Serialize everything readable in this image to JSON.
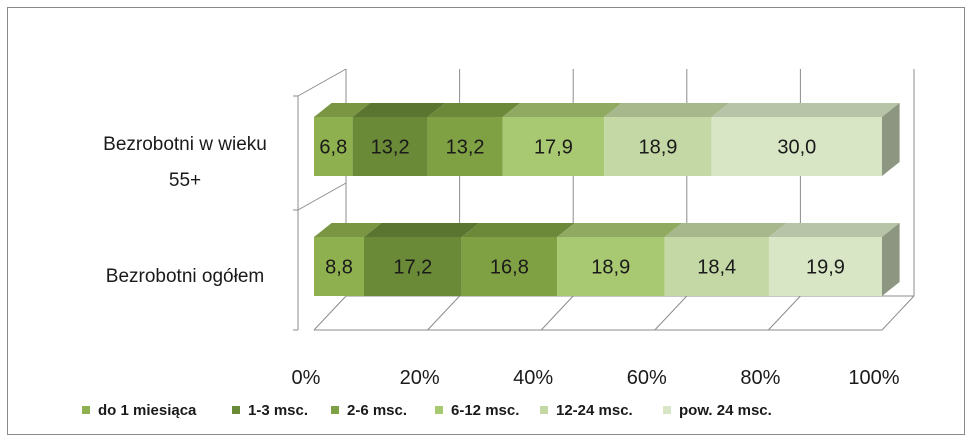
{
  "chart_data": {
    "type": "bar",
    "stacked": "percent",
    "orientation": "horizontal",
    "three_d": true,
    "categories": [
      "Bezrobotni w wieku 55+",
      "Bezrobotni ogółem"
    ],
    "category_label_lines": [
      [
        "Bezrobotni w wieku",
        "55+"
      ],
      [
        "Bezrobotni ogółem"
      ]
    ],
    "series": [
      {
        "name": "do 1 miesiąca",
        "color": "#8fb04e",
        "values": [
          6.8,
          8.8
        ],
        "labels": [
          "6,8",
          "8,8"
        ]
      },
      {
        "name": "1-3 msc.",
        "color": "#6a8a38",
        "values": [
          13.2,
          17.2
        ],
        "labels": [
          "13,2",
          "17,2"
        ]
      },
      {
        "name": "2-6 msc.",
        "color": "#7fa143",
        "values": [
          13.2,
          16.8
        ],
        "labels": [
          "13,2",
          "16,8"
        ]
      },
      {
        "name": "6-12 msc.",
        "color": "#a9c872",
        "values": [
          17.9,
          18.9
        ],
        "labels": [
          "17,9",
          "18,9"
        ]
      },
      {
        "name": "12-24 msc.",
        "color": "#c4d8a6",
        "values": [
          18.9,
          18.4
        ],
        "labels": [
          "18,9",
          "18,4"
        ]
      },
      {
        "name": "pow. 24 msc.",
        "color": "#d9e6c6",
        "values": [
          30.0,
          19.9
        ],
        "labels": [
          "30,0",
          "19,9"
        ]
      }
    ],
    "xlim": [
      0,
      100
    ],
    "xticks": [
      "0%",
      "20%",
      "40%",
      "60%",
      "80%",
      "100%"
    ],
    "grid": true,
    "legend_position": "bottom"
  }
}
